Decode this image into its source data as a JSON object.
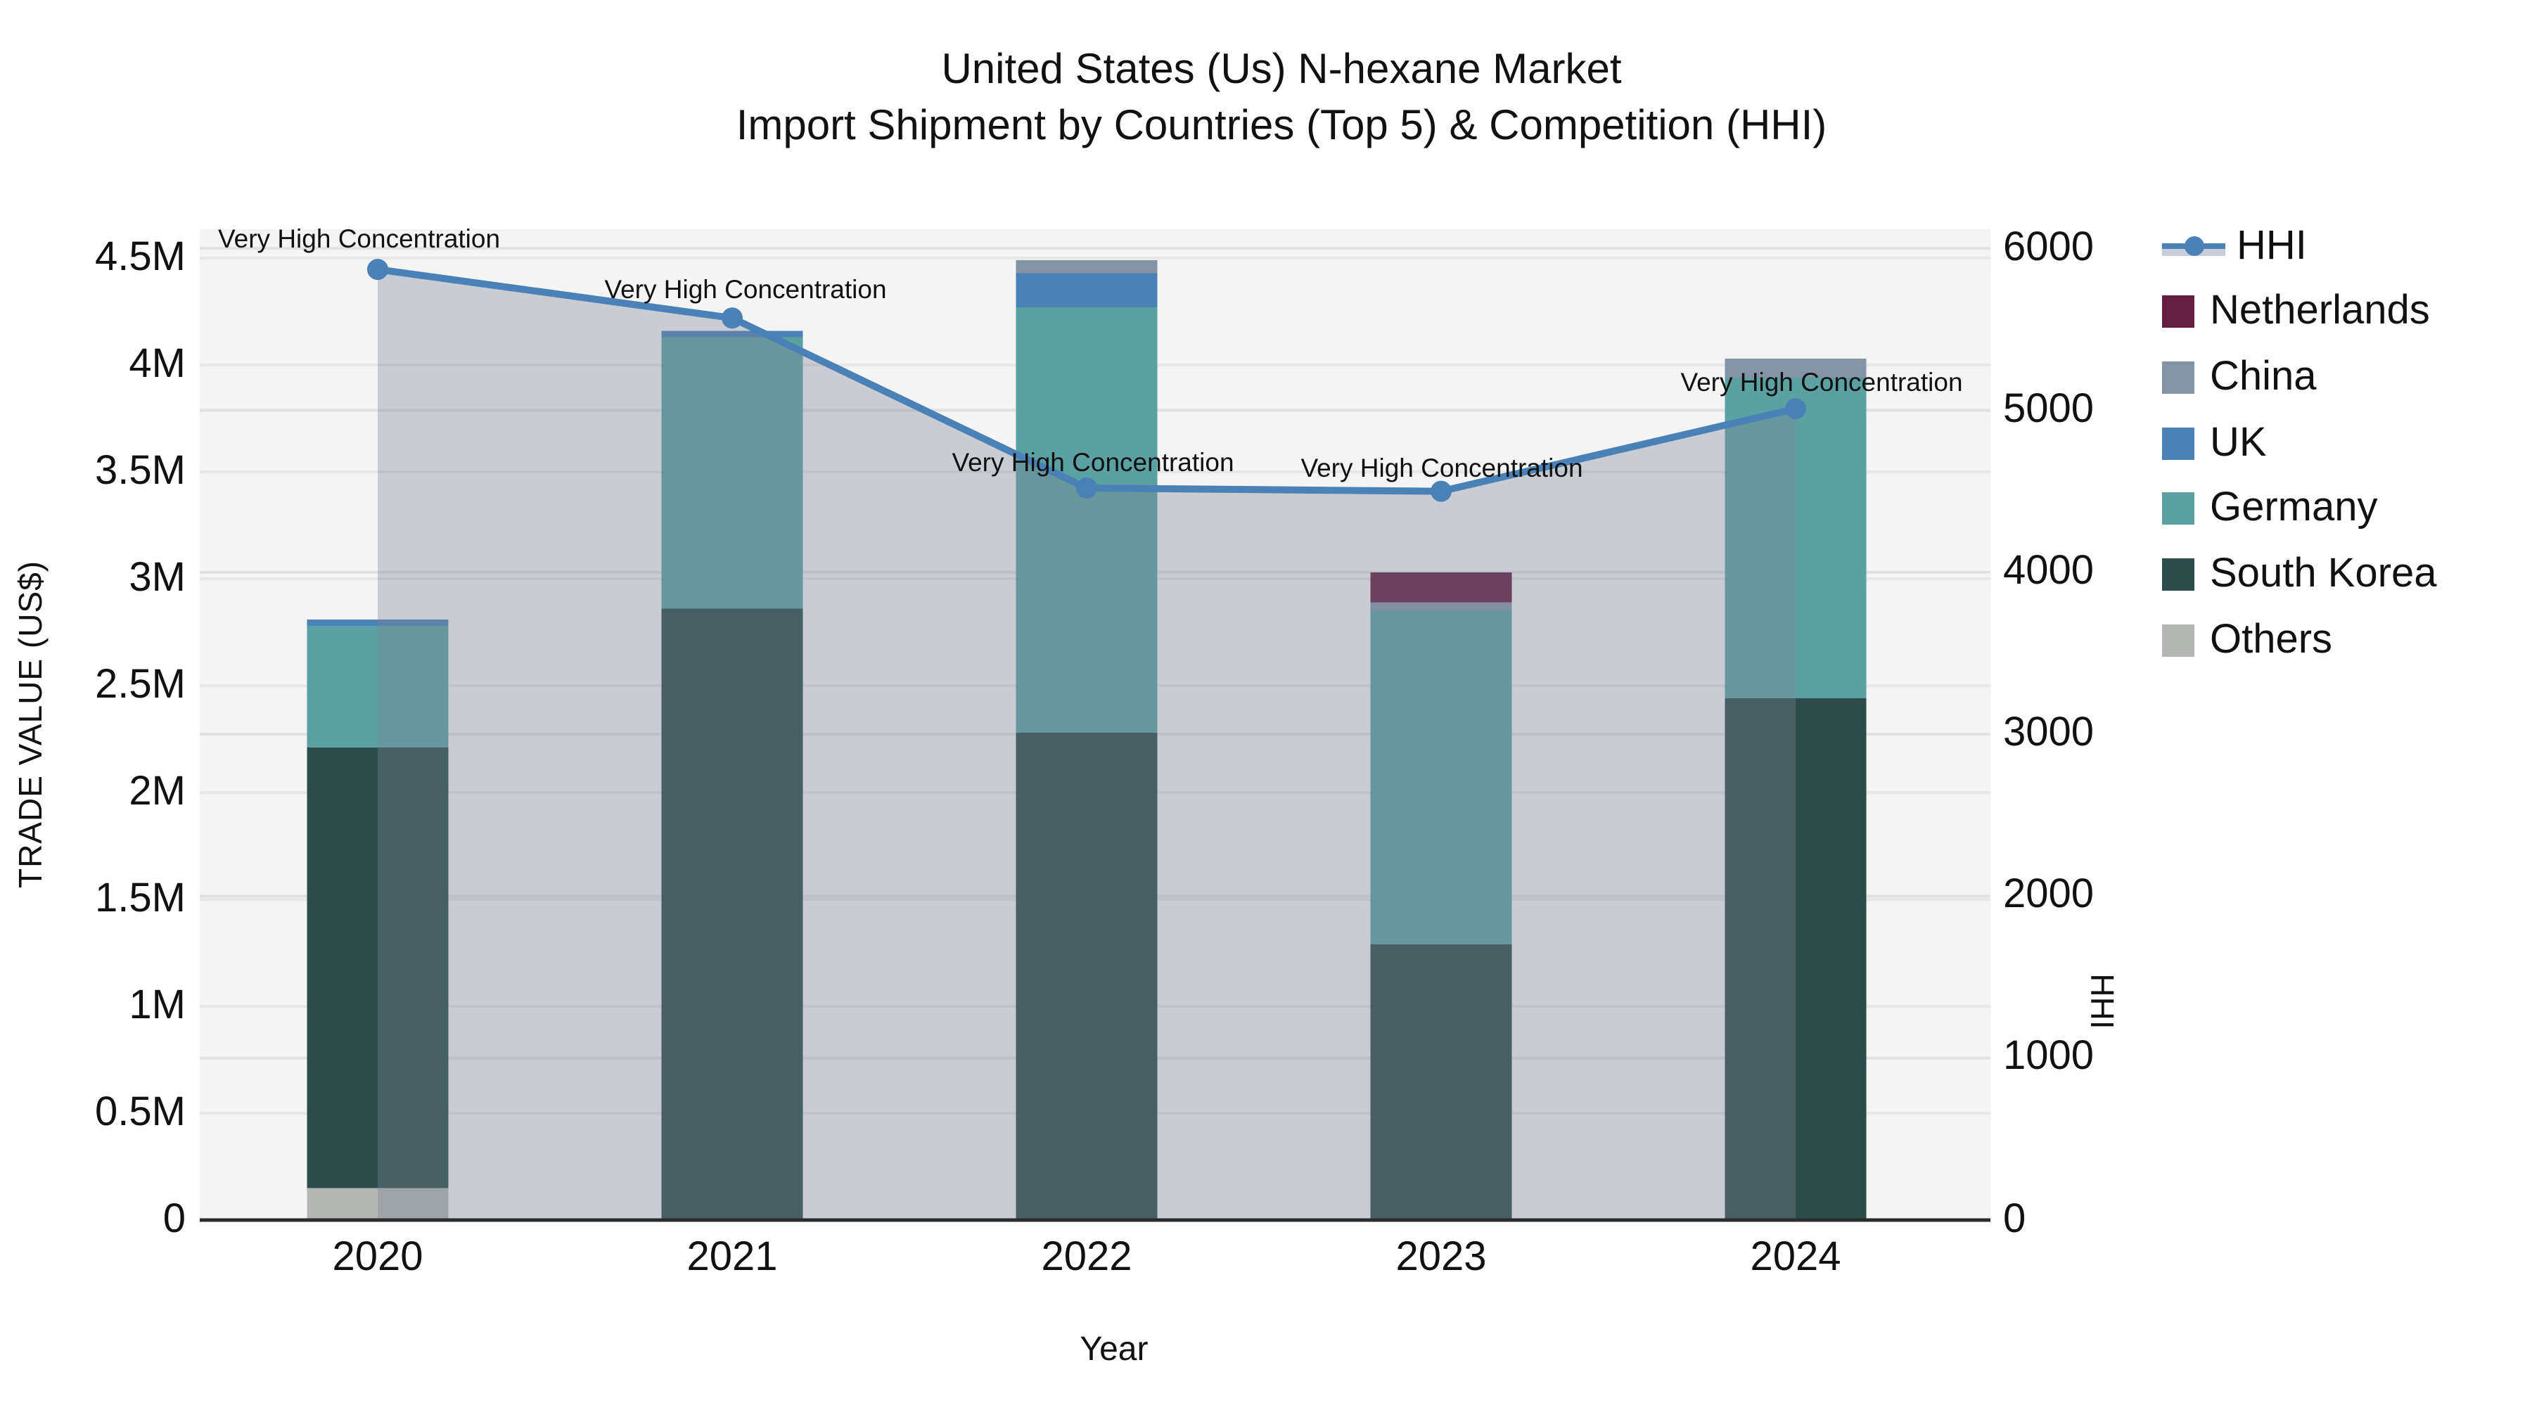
{
  "title": {
    "line1": "United States (Us) N-hexane Market",
    "line2": "Import Shipment by Countries (Top 5) & Competition (HHI)"
  },
  "axes": {
    "y_left": {
      "label": "TRADE VALUE (US$)",
      "tick_labels": [
        "0",
        "0.5M",
        "1M",
        "1.5M",
        "2M",
        "2.5M",
        "3M",
        "3.5M",
        "4M",
        "4.5M"
      ],
      "tick_values": [
        0,
        0.5,
        1,
        1.5,
        2,
        2.5,
        3,
        3.5,
        4,
        4.5
      ],
      "unit": "M"
    },
    "y_right": {
      "label": "HHI",
      "tick_labels": [
        "0",
        "1000",
        "2000",
        "3000",
        "4000",
        "5000",
        "6000"
      ],
      "tick_values": [
        0,
        1000,
        2000,
        3000,
        4000,
        5000,
        6000
      ]
    },
    "x": {
      "label": "Year",
      "tick_labels": [
        "2020",
        "2021",
        "2022",
        "2023",
        "2024"
      ]
    }
  },
  "legend": [
    {
      "label": "HHI",
      "type": "line",
      "color": "#4a82b8",
      "band_color": "#c8cdd7"
    },
    {
      "label": "Netherlands",
      "type": "swatch",
      "color": "#641f41"
    },
    {
      "label": "China",
      "type": "swatch",
      "color": "#8494a5"
    },
    {
      "label": "UK",
      "type": "swatch",
      "color": "#4a82b8"
    },
    {
      "label": "Germany",
      "type": "swatch",
      "color": "#5ba1a1"
    },
    {
      "label": "South Korea",
      "type": "swatch",
      "color": "#2d4c49"
    },
    {
      "label": "Others",
      "type": "swatch",
      "color": "#b3b6b3"
    }
  ],
  "colors": {
    "plot_background": "#f4f4f4",
    "grid_left": "#e7e7e7",
    "grid_right": "#e1e1e3",
    "axis_line": "#2b2b2b",
    "hhi_line": "#4a82b8",
    "hhi_area_fill": "rgba(120,132,150,0.35)",
    "netherlands": "#641f41",
    "china": "#8494a5",
    "uk": "#4a82b8",
    "germany": "#5ba1a1",
    "south_korea": "#2d4c49",
    "others": "#b3b6b3"
  },
  "chart_data": {
    "type": "bar",
    "subtype": "stacked-bars-with-line-overlay",
    "title": "United States (Us) N-hexane Market Import Shipment by Countries (Top 5) & Competition (HHI)",
    "xlabel": "Year",
    "ylabel_left": "TRADE VALUE (US$)",
    "ylabel_right": "HHI",
    "ylim_left_millions": [
      0,
      4.5
    ],
    "ylim_right": [
      0,
      6000
    ],
    "grid": true,
    "legend_position": "right",
    "categories": [
      "2020",
      "2021",
      "2022",
      "2023",
      "2024"
    ],
    "stack_order_bottom_to_top": [
      "Others",
      "South Korea",
      "Germany",
      "UK",
      "China",
      "Netherlands"
    ],
    "series": [
      {
        "name": "Others",
        "unit": "M US$",
        "values": [
          0.15,
          0,
          0,
          0,
          0
        ]
      },
      {
        "name": "South Korea",
        "unit": "M US$",
        "values": [
          2.06,
          2.86,
          2.28,
          1.29,
          2.44
        ]
      },
      {
        "name": "Germany",
        "unit": "M US$",
        "values": [
          0.57,
          1.27,
          1.99,
          1.56,
          1.5
        ]
      },
      {
        "name": "UK",
        "unit": "M US$",
        "values": [
          0.03,
          0.03,
          0.16,
          0,
          0
        ]
      },
      {
        "name": "China",
        "unit": "M US$",
        "values": [
          0,
          0,
          0.06,
          0.04,
          0.09
        ]
      },
      {
        "name": "Netherlands",
        "unit": "M US$",
        "values": [
          0,
          0,
          0,
          0.14,
          0
        ]
      }
    ],
    "bar_totals_millions": [
      2.81,
      4.16,
      4.49,
      3.03,
      4.03
    ],
    "hhi_line": {
      "name": "HHI",
      "values": [
        5870,
        5570,
        4520,
        4500,
        5010
      ],
      "area_fill_under_line": true,
      "annotations": [
        "Very High Concentration",
        "Very High Concentration",
        "Very High Concentration",
        "Very High Concentration",
        "Very High Concentration"
      ]
    }
  }
}
